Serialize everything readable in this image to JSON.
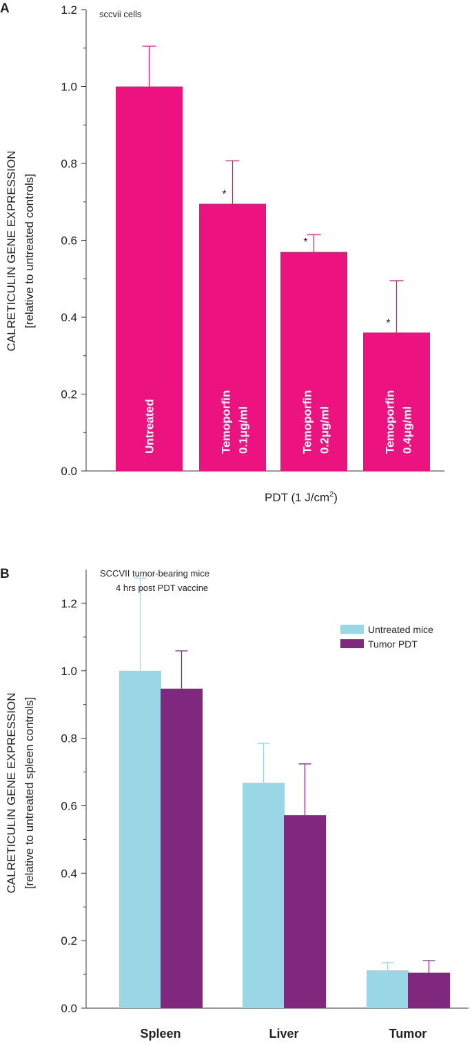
{
  "chart_data": [
    {
      "type": "bar",
      "panel": "A",
      "title": "sccvii cells",
      "ylabel_line1": "CALRETICULIN GENE EXPRESSION",
      "ylabel_line2": "[relative to untreated controls]",
      "xlabel": "PDT (1 J/cm",
      "xlabel_sup": "2",
      "xlabel_close": ")",
      "ylim": [
        0,
        1.2
      ],
      "yticks": [
        "0.0",
        "0.2",
        "0.4",
        "0.6",
        "0.8",
        "1.0",
        "1.2"
      ],
      "categories": [
        {
          "line1": "Untreated",
          "line2": ""
        },
        {
          "line1": "Temoporfin",
          "line2": "0.1μg/ml"
        },
        {
          "line1": "Temoporfin",
          "line2": "0.2μg/ml"
        },
        {
          "line1": "Temoporfin",
          "line2": "0.4μg/ml"
        }
      ],
      "values": [
        1.0,
        0.695,
        0.57,
        0.36
      ],
      "errors": [
        0.105,
        0.112,
        0.045,
        0.135
      ],
      "significance": [
        "",
        "*",
        "*",
        "*"
      ],
      "bar_color": "#ec1380"
    },
    {
      "type": "bar",
      "panel": "B",
      "note_line1": "SCCVII tumor-bearing mice",
      "note_line2": "4 hrs post PDT vaccine",
      "ylabel_line1": "CALRETICULIN GENE EXPRESSION",
      "ylabel_line2": "[relative to untreated spleen controls]",
      "ylim": [
        0,
        1.3
      ],
      "yticks": [
        "0.0",
        "0.2",
        "0.4",
        "0.6",
        "0.8",
        "1.0",
        "1.2"
      ],
      "categories": [
        "Spleen",
        "Liver",
        "Tumor"
      ],
      "series": [
        {
          "name": "Untreated mice",
          "values": [
            1.0,
            0.668,
            0.112
          ],
          "errors": [
            0.275,
            0.117,
            0.023
          ],
          "color": "#99d6e6"
        },
        {
          "name": "Tumor PDT",
          "values": [
            0.947,
            0.572,
            0.105
          ],
          "errors": [
            0.112,
            0.152,
            0.036
          ],
          "color": "#80287e"
        }
      ]
    }
  ]
}
